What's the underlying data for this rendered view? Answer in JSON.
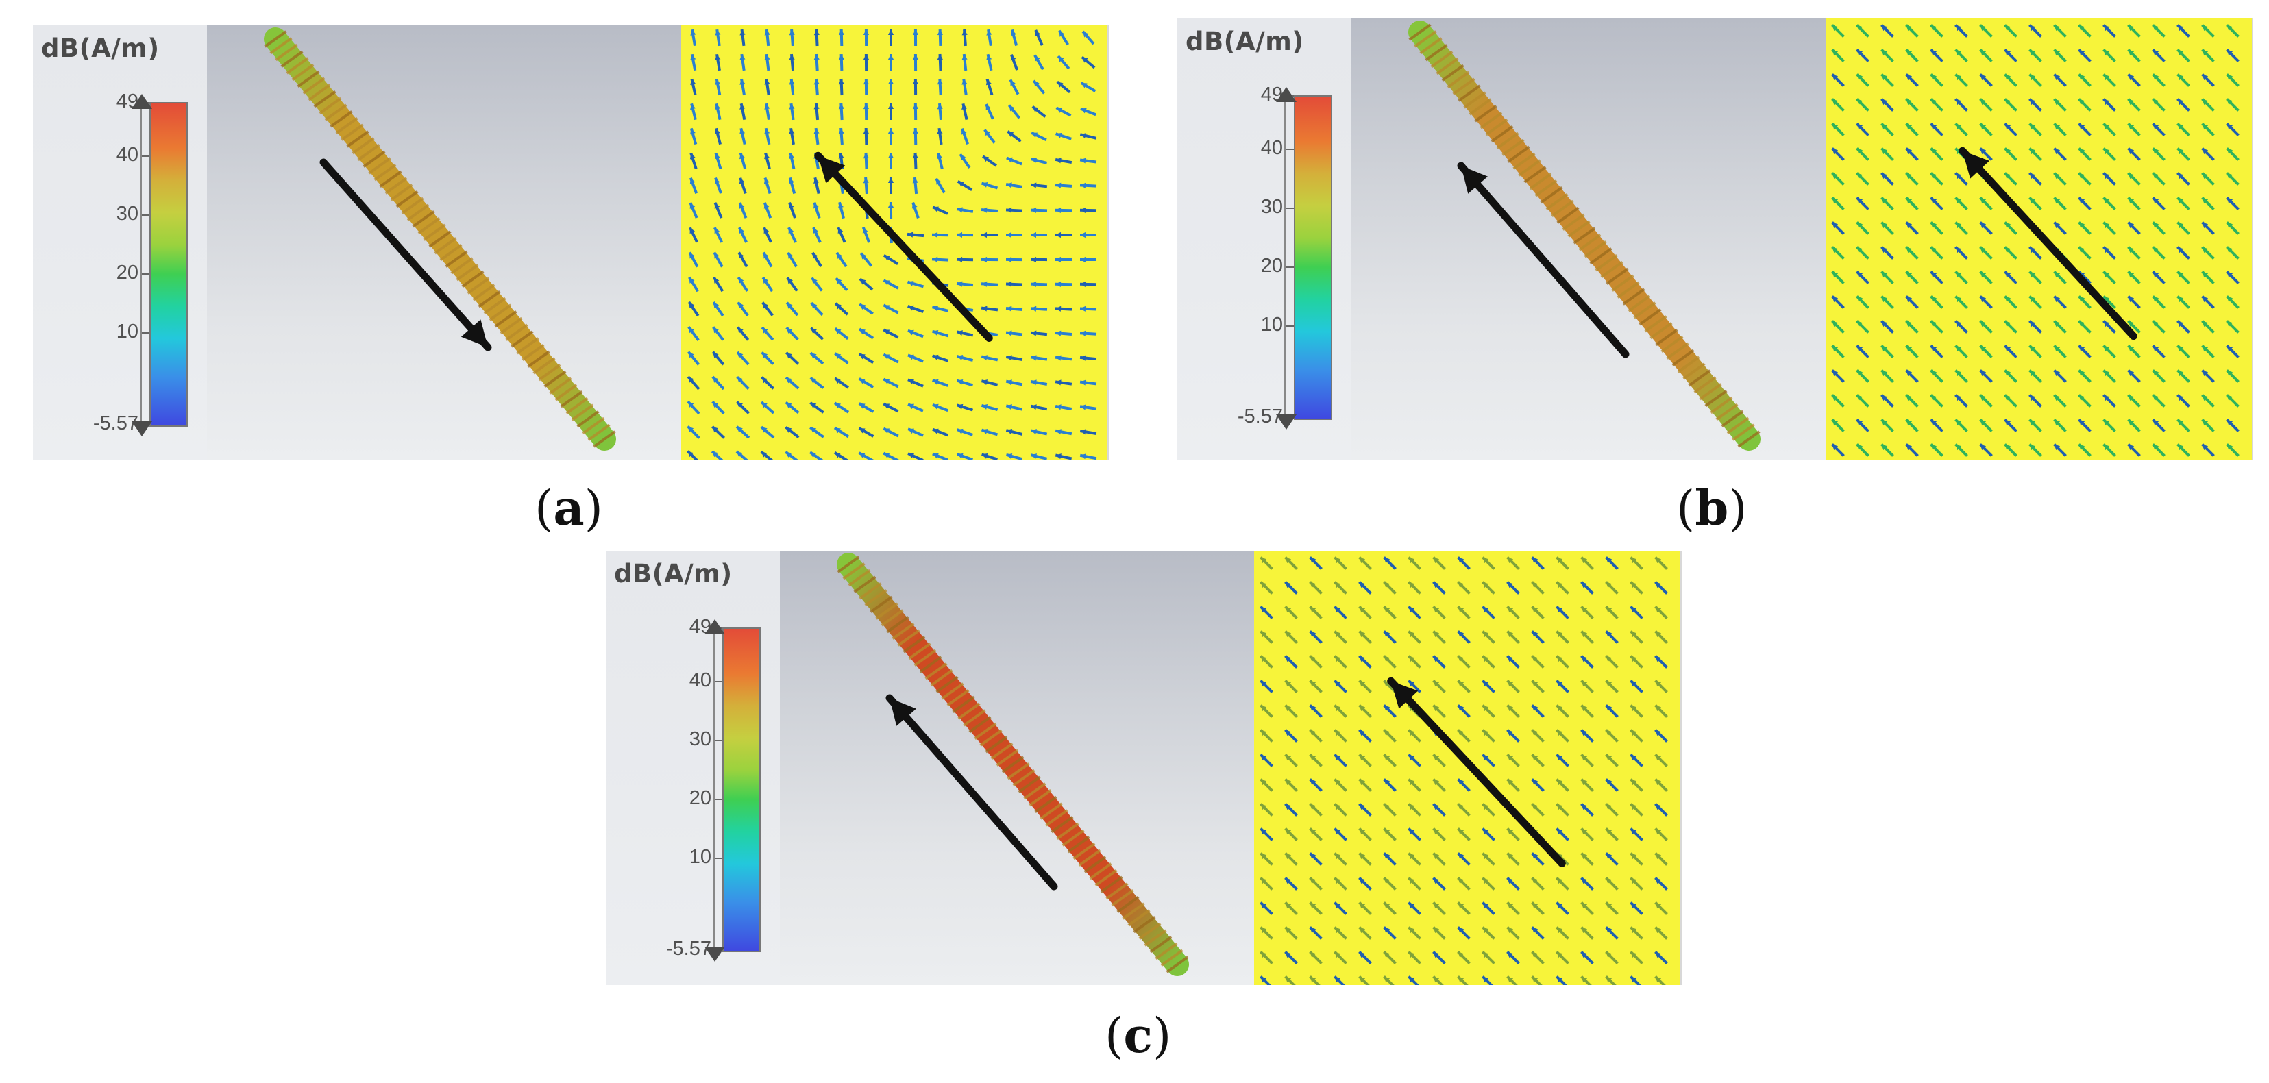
{
  "figure": {
    "panels": [
      {
        "id": "a",
        "caption_open": "(",
        "caption_letter": "a",
        "caption_close": ")",
        "legend": {
          "unit": "dB(A/m)",
          "ticks": [
            "49",
            "40",
            "30",
            "20",
            "10",
            "-5.57"
          ],
          "tick_values": [
            49,
            40,
            30,
            20,
            10,
            -5.57
          ]
        },
        "rod_color": "#c79a2a",
        "rod_arrow_direction": "down-right",
        "field_arrow_direction": "up-left",
        "field_pattern": "vortex",
        "field_arrow_color": "#2a7fd0"
      },
      {
        "id": "b",
        "caption_open": "(",
        "caption_letter": "b",
        "caption_close": ")",
        "legend": {
          "unit": "dB(A/m)",
          "ticks": [
            "49",
            "40",
            "30",
            "20",
            "10",
            "-5.57"
          ],
          "tick_values": [
            49,
            40,
            30,
            20,
            10,
            -5.57
          ]
        },
        "rod_color": "#c98a2e",
        "rod_arrow_direction": "up-left",
        "field_arrow_direction": "up-left",
        "field_pattern": "uniform",
        "field_arrow_color": "#2fb25c"
      },
      {
        "id": "c",
        "caption_open": "(",
        "caption_letter": "c",
        "caption_close": ")",
        "legend": {
          "unit": "dB(A/m)",
          "ticks": [
            "49",
            "40",
            "30",
            "20",
            "10",
            "-5.57"
          ],
          "tick_values": [
            49,
            40,
            30,
            20,
            10,
            -5.57
          ]
        },
        "rod_color": "#cf4a22",
        "rod_arrow_direction": "up-left",
        "field_arrow_direction": "up-left",
        "field_pattern": "uniform",
        "field_arrow_color": "#7fa23a"
      }
    ],
    "colors": {
      "field_background": "#f7f43a",
      "arrow": "#111111"
    }
  }
}
